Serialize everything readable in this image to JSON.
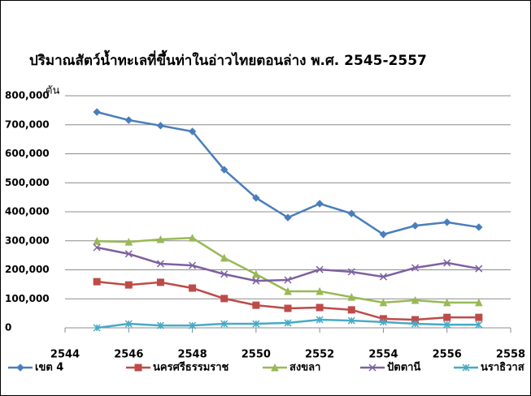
{
  "chart_data": {
    "type": "line",
    "title": "ปริมาณสัตว์น้ำทะเลที่ขึ้นท่าในอ่าวไทยตอนล่าง   พ.ศ. 2545-2557",
    "y_label": "ตัน",
    "x": [
      2545,
      2546,
      2547,
      2548,
      2549,
      2550,
      2551,
      2552,
      2553,
      2554,
      2555,
      2556,
      2557
    ],
    "xlim": [
      2544,
      2558
    ],
    "xticks": [
      2544,
      2546,
      2548,
      2550,
      2552,
      2554,
      2556,
      2558
    ],
    "ylim": [
      0,
      800000
    ],
    "yticks": [
      0,
      {
        "value": 100000,
        "label": "100,000"
      },
      {
        "value": 200000,
        "label": "200,000"
      },
      {
        "value": 300000,
        "label": "300,000"
      },
      {
        "value": 400000,
        "label": "400,000"
      },
      {
        "value": 500000,
        "label": "500,000"
      },
      {
        "value": 600000,
        "label": "600,000"
      },
      {
        "value": 700000,
        "label": "700,000"
      },
      {
        "value": 800000,
        "label": "800,000"
      }
    ],
    "grid": true,
    "legend": "bottom",
    "series": [
      {
        "name": "เขต  4",
        "color": "#4a7ebb",
        "marker": "diamond",
        "values": [
          744000,
          716000,
          697000,
          677000,
          545000,
          448000,
          380000,
          428000,
          394000,
          322000,
          352000,
          364000,
          347000
        ]
      },
      {
        "name": "นครศรีธรรมราช",
        "color": "#be4b48",
        "marker": "square",
        "values": [
          159000,
          148000,
          157000,
          137000,
          101000,
          78000,
          67000,
          70000,
          62000,
          31000,
          28000,
          36000,
          36000
        ]
      },
      {
        "name": "สงขลา",
        "color": "#98b954",
        "marker": "triangle",
        "values": [
          299000,
          296000,
          305000,
          310000,
          241000,
          185000,
          126000,
          126000,
          106000,
          87000,
          95000,
          87000,
          87000
        ]
      },
      {
        "name": "ปัตตานี",
        "color": "#7d60a0",
        "marker": "x",
        "values": [
          277000,
          255000,
          221000,
          215000,
          185000,
          162000,
          165000,
          201000,
          193000,
          176000,
          207000,
          224000,
          204000
        ]
      },
      {
        "name": "นราธิวาส",
        "color": "#46aac5",
        "marker": "star",
        "values": [
          0,
          14000,
          8000,
          8000,
          14000,
          14000,
          17000,
          28000,
          25000,
          20000,
          14000,
          11000,
          11000
        ]
      }
    ]
  }
}
